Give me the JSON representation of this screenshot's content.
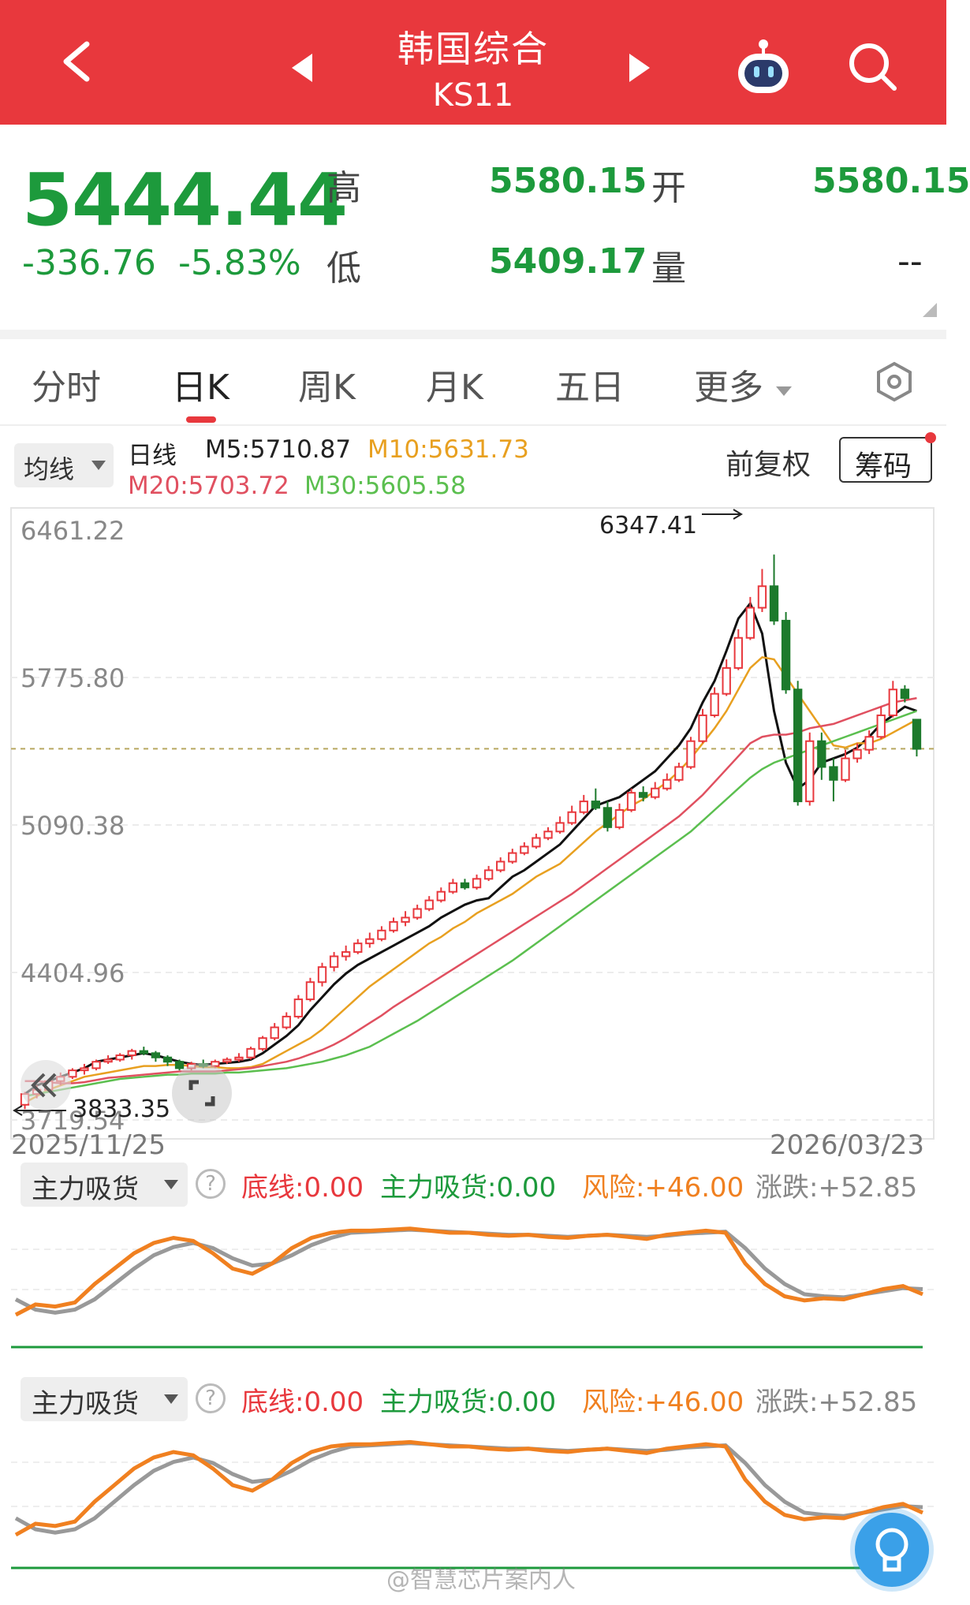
{
  "header": {
    "title": "韩国综合",
    "code": "KS11"
  },
  "quote": {
    "price": "5444.44",
    "change": "-336.76",
    "change_pct": "-5.83%",
    "high_label": "高",
    "high": "5580.15",
    "open_label": "开",
    "open": "5580.15",
    "low_label": "低",
    "low": "5409.17",
    "volume_label": "量",
    "volume": "--"
  },
  "tabs": [
    "分时",
    "日K",
    "周K",
    "月K",
    "五日",
    "更多"
  ],
  "active_tab": "日K",
  "ma_bar": {
    "selector": "均线",
    "period": "日线",
    "m5": "M5:5710.87",
    "m10": "M10:5631.73",
    "m20": "M20:5703.72",
    "m30": "M30:5605.58",
    "adjust": "前复权",
    "chips_button": "筹码"
  },
  "colors": {
    "header_bg": "#e8383d",
    "up": "#e8383d",
    "down": "#1d7a2c",
    "m5": "#111111",
    "m10": "#e8a020",
    "m20": "#e05060",
    "m30": "#5bbf4f",
    "indicator_orange": "#f08020",
    "indicator_gray": "#999999"
  },
  "chart_data": {
    "type": "candlestick",
    "y_ticks": [
      "6461.22",
      "5775.80",
      "5090.38",
      "4404.96",
      "3719.54"
    ],
    "ylim": [
      3719.54,
      6461.22
    ],
    "x_start": "2025/11/25",
    "x_end": "2026/03/23",
    "max_label": "6347.41",
    "min_label": "3833.35",
    "last_close": 5444.44,
    "ma_lines": {
      "M5": [
        3840,
        3880,
        3900,
        3920,
        3940,
        3960,
        3990,
        4000,
        4010,
        4020,
        4030,
        4020,
        4005,
        3990,
        3980,
        3975,
        3980,
        3985,
        3990,
        4000,
        4030,
        4070,
        4110,
        4160,
        4230,
        4290,
        4350,
        4400,
        4440,
        4470,
        4500,
        4530,
        4560,
        4590,
        4620,
        4660,
        4690,
        4720,
        4740,
        4750,
        4800,
        4850,
        4880,
        4920,
        4960,
        5000,
        5060,
        5120,
        5180,
        5200,
        5220,
        5260,
        5300,
        5340,
        5400,
        5460,
        5540,
        5660,
        5760,
        5900,
        6050,
        6120,
        5980,
        5620,
        5380,
        5260,
        5300,
        5380,
        5400,
        5420,
        5450,
        5500,
        5560,
        5600,
        5640,
        5620
      ],
      "M10": [
        3800,
        3830,
        3860,
        3880,
        3900,
        3920,
        3930,
        3940,
        3950,
        3960,
        3970,
        3970,
        3975,
        3975,
        3970,
        3965,
        3965,
        3960,
        3960,
        3965,
        3980,
        4010,
        4040,
        4070,
        4100,
        4140,
        4190,
        4240,
        4290,
        4340,
        4380,
        4420,
        4460,
        4500,
        4540,
        4570,
        4610,
        4640,
        4680,
        4710,
        4740,
        4770,
        4810,
        4850,
        4880,
        4910,
        4960,
        5010,
        5060,
        5100,
        5140,
        5180,
        5210,
        5250,
        5290,
        5340,
        5400,
        5470,
        5540,
        5620,
        5720,
        5820,
        5870,
        5860,
        5780,
        5700,
        5620,
        5540,
        5460,
        5450,
        5470,
        5470,
        5490,
        5520,
        5550,
        5580
      ],
      "M20": [
        3900,
        3900,
        3895,
        3890,
        3890,
        3895,
        3905,
        3915,
        3920,
        3925,
        3930,
        3935,
        3940,
        3945,
        3945,
        3945,
        3945,
        3950,
        3955,
        3960,
        3970,
        3980,
        3990,
        4005,
        4025,
        4045,
        4070,
        4100,
        4135,
        4170,
        4205,
        4245,
        4280,
        4315,
        4350,
        4385,
        4420,
        4455,
        4490,
        4525,
        4560,
        4595,
        4630,
        4665,
        4700,
        4735,
        4770,
        4810,
        4850,
        4890,
        4930,
        4970,
        5010,
        5050,
        5090,
        5130,
        5180,
        5230,
        5290,
        5350,
        5410,
        5470,
        5500,
        5510,
        5510,
        5520,
        5540,
        5550,
        5560,
        5580,
        5600,
        5620,
        5640,
        5660,
        5670,
        5680
      ],
      "M30": [
        3830,
        3840,
        3850,
        3860,
        3870,
        3880,
        3890,
        3900,
        3910,
        3915,
        3920,
        3925,
        3930,
        3930,
        3935,
        3935,
        3935,
        3940,
        3940,
        3945,
        3950,
        3955,
        3960,
        3970,
        3980,
        3990,
        4005,
        4020,
        4040,
        4060,
        4090,
        4120,
        4150,
        4180,
        4215,
        4250,
        4285,
        4320,
        4355,
        4390,
        4425,
        4460,
        4500,
        4540,
        4580,
        4620,
        4660,
        4700,
        4740,
        4780,
        4820,
        4860,
        4900,
        4940,
        4980,
        5020,
        5060,
        5110,
        5160,
        5210,
        5260,
        5310,
        5350,
        5380,
        5400,
        5420,
        5440,
        5460,
        5480,
        5500,
        5520,
        5540,
        5560,
        5580,
        5600,
        5620
      ]
    },
    "candles": [
      [
        3790,
        3840,
        3770,
        3850
      ],
      [
        3840,
        3860,
        3820,
        3880
      ],
      [
        3860,
        3900,
        3850,
        3910
      ],
      [
        3900,
        3920,
        3880,
        3940
      ],
      [
        3920,
        3950,
        3910,
        3960
      ],
      [
        3950,
        3960,
        3930,
        3980
      ],
      [
        3960,
        3990,
        3950,
        4000
      ],
      [
        3990,
        4000,
        3980,
        4020
      ],
      [
        4000,
        4020,
        3990,
        4030
      ],
      [
        4020,
        4040,
        4000,
        4050
      ],
      [
        4040,
        4030,
        4020,
        4060
      ],
      [
        4030,
        4010,
        3990,
        4040
      ],
      [
        4010,
        3990,
        3970,
        4020
      ],
      [
        3990,
        3960,
        3950,
        4000
      ],
      [
        3960,
        3980,
        3950,
        3990
      ],
      [
        3980,
        3970,
        3960,
        4000
      ],
      [
        3970,
        3990,
        3960,
        4000
      ],
      [
        3990,
        4000,
        3980,
        4010
      ],
      [
        4000,
        4010,
        3990,
        4030
      ],
      [
        4010,
        4050,
        4000,
        4060
      ],
      [
        4050,
        4100,
        4040,
        4110
      ],
      [
        4100,
        4150,
        4090,
        4170
      ],
      [
        4150,
        4200,
        4140,
        4220
      ],
      [
        4200,
        4280,
        4190,
        4300
      ],
      [
        4280,
        4360,
        4270,
        4380
      ],
      [
        4360,
        4430,
        4340,
        4450
      ],
      [
        4430,
        4480,
        4410,
        4500
      ],
      [
        4480,
        4500,
        4460,
        4530
      ],
      [
        4500,
        4540,
        4490,
        4560
      ],
      [
        4540,
        4560,
        4520,
        4590
      ],
      [
        4560,
        4600,
        4550,
        4620
      ],
      [
        4600,
        4640,
        4590,
        4660
      ],
      [
        4640,
        4660,
        4620,
        4690
      ],
      [
        4660,
        4700,
        4650,
        4720
      ],
      [
        4700,
        4740,
        4690,
        4760
      ],
      [
        4740,
        4780,
        4730,
        4800
      ],
      [
        4780,
        4820,
        4770,
        4840
      ],
      [
        4820,
        4800,
        4790,
        4840
      ],
      [
        4800,
        4840,
        4790,
        4860
      ],
      [
        4840,
        4880,
        4830,
        4900
      ],
      [
        4880,
        4920,
        4870,
        4940
      ],
      [
        4920,
        4960,
        4910,
        4980
      ],
      [
        4960,
        4990,
        4950,
        5010
      ],
      [
        4990,
        5030,
        4980,
        5050
      ],
      [
        5030,
        5060,
        5020,
        5080
      ],
      [
        5060,
        5100,
        5050,
        5130
      ],
      [
        5100,
        5150,
        5090,
        5180
      ],
      [
        5150,
        5200,
        5140,
        5230
      ],
      [
        5200,
        5170,
        5160,
        5260
      ],
      [
        5170,
        5080,
        5060,
        5200
      ],
      [
        5080,
        5160,
        5070,
        5190
      ],
      [
        5160,
        5240,
        5150,
        5260
      ],
      [
        5240,
        5220,
        5200,
        5270
      ],
      [
        5220,
        5260,
        5210,
        5290
      ],
      [
        5260,
        5300,
        5250,
        5330
      ],
      [
        5300,
        5360,
        5290,
        5380
      ],
      [
        5360,
        5480,
        5350,
        5500
      ],
      [
        5480,
        5600,
        5470,
        5630
      ],
      [
        5600,
        5700,
        5590,
        5730
      ],
      [
        5700,
        5820,
        5690,
        5860
      ],
      [
        5820,
        5960,
        5810,
        6000
      ],
      [
        5960,
        6100,
        5950,
        6150
      ],
      [
        6100,
        6200,
        6080,
        6280
      ],
      [
        6200,
        6040,
        6020,
        6347
      ],
      [
        6040,
        5720,
        5700,
        6080
      ],
      [
        5720,
        5200,
        5180,
        5760
      ],
      [
        5200,
        5480,
        5180,
        5520
      ],
      [
        5480,
        5360,
        5300,
        5520
      ],
      [
        5360,
        5300,
        5200,
        5400
      ],
      [
        5300,
        5400,
        5290,
        5440
      ],
      [
        5400,
        5440,
        5380,
        5470
      ],
      [
        5440,
        5500,
        5420,
        5530
      ],
      [
        5500,
        5600,
        5490,
        5640
      ],
      [
        5600,
        5720,
        5590,
        5760
      ],
      [
        5720,
        5680,
        5660,
        5740
      ],
      [
        5580,
        5444,
        5409,
        5580
      ]
    ]
  },
  "indicator1": {
    "selector": "主力吸货",
    "line_base": "底线:0.00",
    "line_main": "主力吸货:0.00",
    "line_risk": "风险:+46.00",
    "line_chg": "涨跌:+52.85",
    "orange": [
      10,
      20,
      18,
      22,
      40,
      55,
      70,
      80,
      85,
      82,
      70,
      55,
      50,
      60,
      75,
      85,
      90,
      92,
      92,
      93,
      94,
      92,
      90,
      90,
      88,
      87,
      88,
      86,
      85,
      87,
      88,
      86,
      84,
      88,
      90,
      92,
      90,
      60,
      40,
      28,
      24,
      26,
      25,
      30,
      35,
      38,
      30
    ],
    "gray": [
      25,
      15,
      12,
      15,
      25,
      40,
      55,
      68,
      76,
      80,
      75,
      65,
      58,
      60,
      68,
      78,
      85,
      90,
      91,
      92,
      93,
      92,
      91,
      90,
      89,
      88,
      88,
      87,
      86,
      87,
      88,
      87,
      86,
      87,
      89,
      90,
      91,
      75,
      55,
      40,
      30,
      28,
      27,
      30,
      33,
      36,
      35
    ]
  },
  "indicator2": {
    "selector": "主力吸货",
    "line_base": "底线:0.00",
    "line_main": "主力吸货:0.00",
    "line_risk": "风险:+46.00",
    "line_chg": "涨跌:+52.85"
  },
  "watermark": "@智慧芯片案内人"
}
